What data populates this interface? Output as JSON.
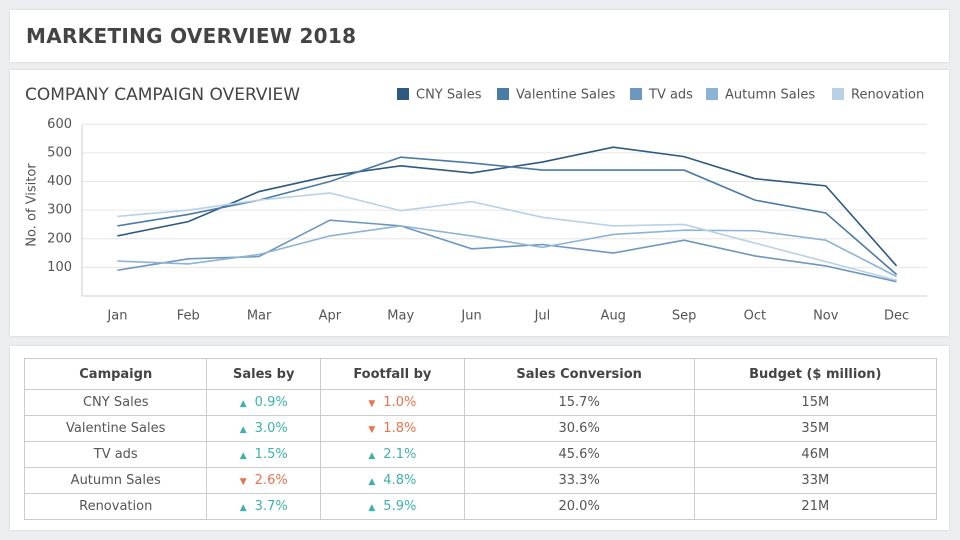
{
  "header": {
    "title": "MARKETING OVERVIEW 2018"
  },
  "chart_data": {
    "type": "line",
    "title": "COMPANY CAMPAIGN OVERVIEW",
    "y_label": "No. of Visitor",
    "categories": [
      "Jan",
      "Feb",
      "Mar",
      "Apr",
      "May",
      "Jun",
      "Jul",
      "Aug",
      "Sep",
      "Oct",
      "Nov",
      "Dec"
    ],
    "series": [
      {
        "name": "CNY Sales",
        "color": "#2d5a80",
        "values": [
          210,
          260,
          365,
          420,
          455,
          430,
          468,
          520,
          487,
          410,
          385,
          105
        ]
      },
      {
        "name": "Valentine Sales",
        "color": "#4a7aa6",
        "values": [
          245,
          285,
          335,
          400,
          485,
          465,
          440,
          440,
          440,
          335,
          290,
          75
        ]
      },
      {
        "name": "TV ads",
        "color": "#6d97bf",
        "values": [
          90,
          130,
          138,
          265,
          245,
          165,
          180,
          150,
          195,
          140,
          105,
          50
        ]
      },
      {
        "name": "Autumn Sales",
        "color": "#8db4d6",
        "values": [
          122,
          112,
          145,
          210,
          245,
          210,
          170,
          215,
          230,
          228,
          195,
          68
        ]
      },
      {
        "name": "Renovation",
        "color": "#b8d1e6",
        "values": [
          278,
          300,
          335,
          360,
          298,
          330,
          275,
          245,
          250,
          185,
          120,
          55
        ]
      }
    ],
    "ylim": [
      0,
      650
    ],
    "yticks": [
      100,
      200,
      300,
      400,
      500,
      600
    ],
    "grid": true,
    "legend": "top"
  },
  "table": {
    "columns": [
      "Campaign",
      "Sales by",
      "Footfall by",
      "Sales Conversion",
      "Budget ($ million)"
    ],
    "rows": [
      [
        "CNY Sales",
        {
          "text": "0.9%",
          "trend": "up"
        },
        {
          "text": "1.0%",
          "trend": "down"
        },
        "15.7%",
        "15M"
      ],
      [
        "Valentine Sales",
        {
          "text": "3.0%",
          "trend": "up"
        },
        {
          "text": "1.8%",
          "trend": "down"
        },
        "30.6%",
        "35M"
      ],
      [
        "TV ads",
        {
          "text": "1.5%",
          "trend": "up"
        },
        {
          "text": "2.1%",
          "trend": "up"
        },
        "45.6%",
        "46M"
      ],
      [
        "Autumn Sales",
        {
          "text": "2.6%",
          "trend": "down"
        },
        {
          "text": "4.8%",
          "trend": "up"
        },
        "33.3%",
        "33M"
      ],
      [
        "Renovation",
        {
          "text": "3.7%",
          "trend": "up"
        },
        {
          "text": "5.9%",
          "trend": "up"
        },
        "20.0%",
        "21M"
      ]
    ]
  }
}
